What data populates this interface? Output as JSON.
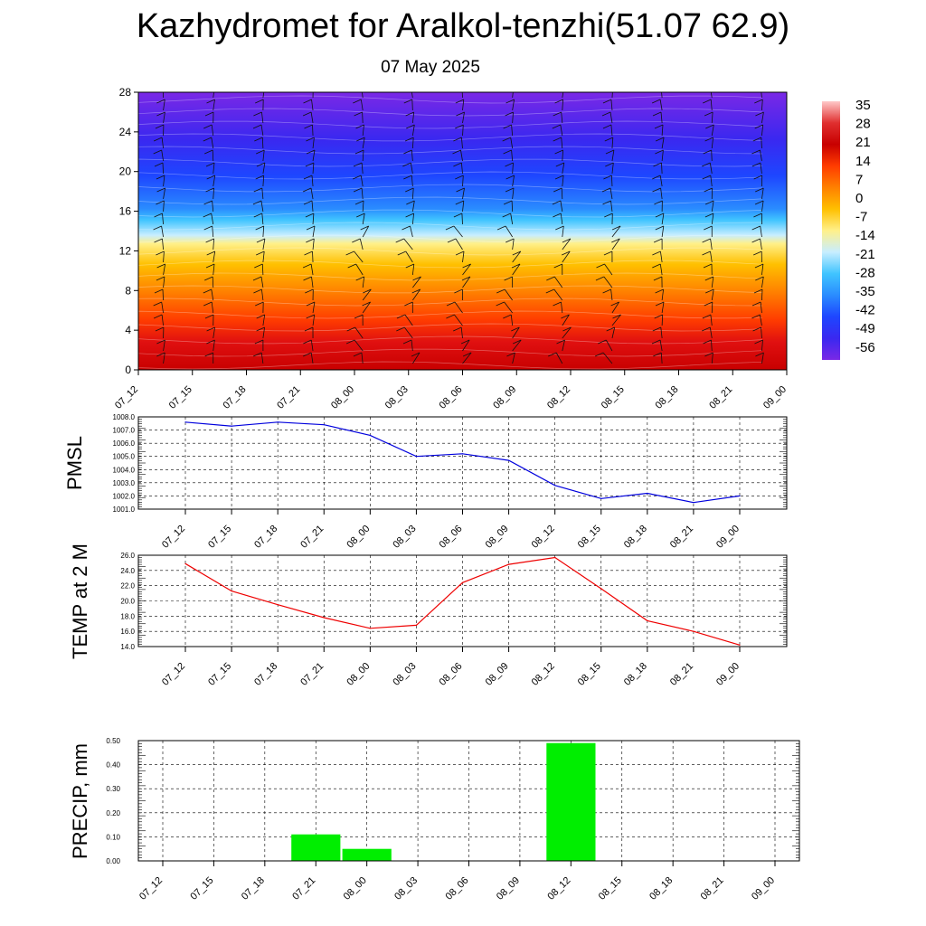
{
  "header": {
    "title": "Kazhydromet for Aralkol-tenzhi(51.07 62.9)",
    "date": "07 May 2025"
  },
  "colorbar": {
    "labels": [
      "35",
      "28",
      "21",
      "14",
      "7",
      "0",
      "-7",
      "-14",
      "-21",
      "-28",
      "-35",
      "-42",
      "-49",
      "-56"
    ]
  },
  "chart_data": [
    {
      "type": "heatmap",
      "name": "height-time-section",
      "x": [
        "07_12",
        "07_15",
        "07_18",
        "07_21",
        "08_00",
        "08_03",
        "08_06",
        "08_09",
        "08_12",
        "08_15",
        "08_18",
        "08_21",
        "09_00"
      ],
      "yticks": [
        "0",
        "4",
        "8",
        "12",
        "16",
        "20",
        "24",
        "28"
      ],
      "ylim": [
        0,
        28
      ],
      "colorscale": [
        "#7a28e6",
        "#3a28f0",
        "#1e46ff",
        "#2a8cff",
        "#40c4ff",
        "#c8eeff",
        "#fff08a",
        "#ffc000",
        "#ff8000",
        "#ff3c00",
        "#e01010",
        "#c80000"
      ]
    },
    {
      "type": "line",
      "ylabel": "PMSL",
      "x": [
        "07_12",
        "07_15",
        "07_18",
        "07_21",
        "08_00",
        "08_03",
        "08_06",
        "08_09",
        "08_12",
        "08_15",
        "08_18",
        "08_21",
        "09_00"
      ],
      "values": [
        1007.6,
        1007.3,
        1007.6,
        1007.4,
        1006.6,
        1005.0,
        1005.2,
        1004.7,
        1002.8,
        1001.8,
        1002.2,
        1001.5,
        1002.0
      ],
      "ylim": [
        1001.0,
        1008.0
      ],
      "yticks": [
        "1001.0",
        "1002.0",
        "1003.0",
        "1004.0",
        "1005.0",
        "1006.0",
        "1007.0",
        "1008.0"
      ],
      "color": "#0000dd"
    },
    {
      "type": "line",
      "ylabel": "TEMP at 2 M",
      "x": [
        "07_12",
        "07_15",
        "07_18",
        "07_21",
        "08_00",
        "08_03",
        "08_06",
        "08_09",
        "08_12",
        "08_15",
        "08_18",
        "08_21",
        "09_00"
      ],
      "values": [
        24.9,
        21.3,
        19.5,
        17.8,
        16.4,
        16.8,
        22.4,
        24.8,
        25.7,
        21.6,
        17.4,
        16.0,
        14.2
      ],
      "ylim": [
        14.0,
        26.0
      ],
      "yticks": [
        "14.0",
        "16.0",
        "18.0",
        "20.0",
        "22.0",
        "24.0",
        "26.0"
      ],
      "color": "#ee0000"
    },
    {
      "type": "bar",
      "ylabel": "PRECIP, mm",
      "x": [
        "07_12",
        "07_15",
        "07_18",
        "07_21",
        "08_00",
        "08_03",
        "08_06",
        "08_09",
        "08_12",
        "08_15",
        "08_18",
        "08_21",
        "09_00"
      ],
      "values": [
        0,
        0,
        0,
        0.11,
        0.05,
        0,
        0,
        0,
        0.49,
        0,
        0,
        0,
        0
      ],
      "ylim": [
        0,
        0.5
      ],
      "yticks": [
        "0.00",
        "0.10",
        "0.20",
        "0.30",
        "0.40",
        "0.50"
      ],
      "color": "#00ee00"
    }
  ]
}
